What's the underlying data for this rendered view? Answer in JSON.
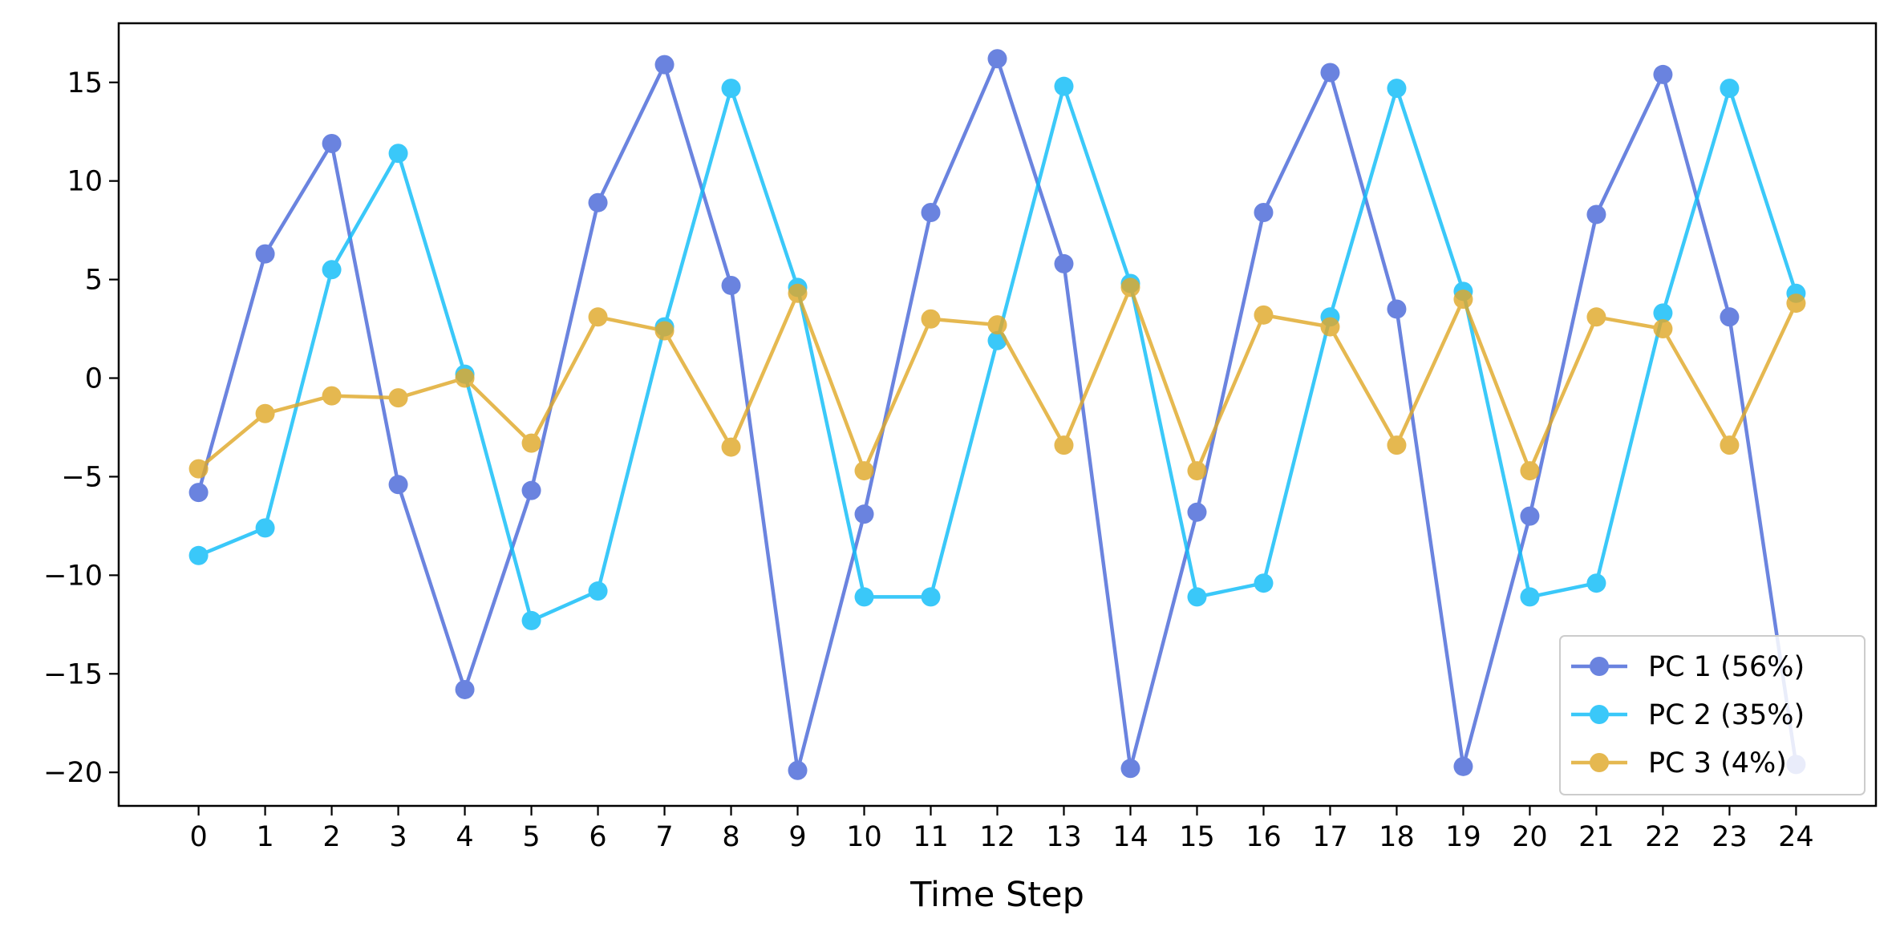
{
  "chart_data": {
    "type": "line",
    "title": "",
    "xlabel": "Time Step",
    "ylabel": "",
    "x": [
      0,
      1,
      2,
      3,
      4,
      5,
      6,
      7,
      8,
      9,
      10,
      11,
      12,
      13,
      14,
      15,
      16,
      17,
      18,
      19,
      20,
      21,
      22,
      23,
      24
    ],
    "xticks": [
      "0",
      "1",
      "2",
      "3",
      "4",
      "5",
      "6",
      "7",
      "8",
      "9",
      "10",
      "11",
      "12",
      "13",
      "14",
      "15",
      "16",
      "17",
      "18",
      "19",
      "20",
      "21",
      "22",
      "23",
      "24"
    ],
    "yticks": [
      -20,
      -15,
      -10,
      -5,
      0,
      5,
      10,
      15
    ],
    "ytick_labels": [
      "−20",
      "−15",
      "−10",
      "−5",
      "0",
      "5",
      "10",
      "15"
    ],
    "xlim": [
      -1.2,
      25.2
    ],
    "ylim": [
      -21.7,
      18.0
    ],
    "grid": false,
    "legend_position": "bottom-right",
    "series": [
      {
        "name": "PC 1 (56%)",
        "color": "#4a69d8",
        "values": [
          -5.8,
          6.3,
          11.9,
          -5.4,
          -15.8,
          -5.7,
          8.9,
          15.9,
          4.7,
          -19.9,
          -6.9,
          8.4,
          16.2,
          5.8,
          -19.8,
          -6.8,
          8.4,
          15.5,
          3.5,
          -19.7,
          -7.0,
          8.3,
          15.4,
          3.1,
          -19.6
        ]
      },
      {
        "name": "PC 2 (35%)",
        "color": "#10bdf8",
        "values": [
          -9.0,
          -7.6,
          5.5,
          11.4,
          0.2,
          -12.3,
          -10.8,
          2.6,
          14.7,
          4.6,
          -11.1,
          -11.1,
          1.9,
          14.8,
          4.8,
          -11.1,
          -10.4,
          3.1,
          14.7,
          4.4,
          -11.1,
          -10.4,
          3.3,
          14.7,
          4.3
        ]
      },
      {
        "name": "PC 3 (4%)",
        "color": "#e0a92a",
        "values": [
          -4.6,
          -1.8,
          -0.9,
          -1.0,
          0.0,
          -3.3,
          3.1,
          2.4,
          -3.5,
          4.3,
          -4.7,
          3.0,
          2.7,
          -3.4,
          4.6,
          -4.7,
          3.2,
          2.6,
          -3.4,
          4.0,
          -4.7,
          3.1,
          2.5,
          -3.4,
          3.8
        ]
      }
    ]
  }
}
